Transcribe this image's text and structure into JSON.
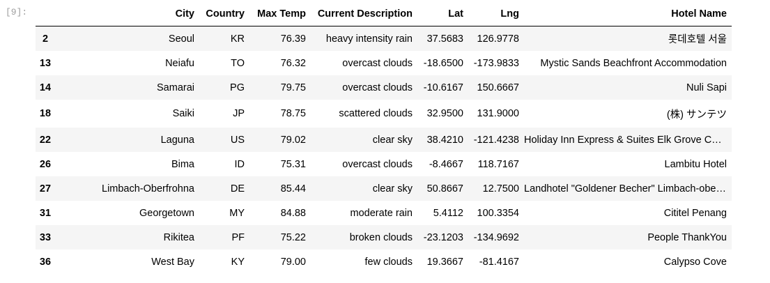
{
  "cell": {
    "prompt": "[9]:"
  },
  "table": {
    "columns": [
      "City",
      "Country",
      "Max Temp",
      "Current Description",
      "Lat",
      "Lng",
      "Hotel Name"
    ],
    "rows": [
      {
        "index": "2",
        "city": "Seoul",
        "country": "KR",
        "max_temp": "76.39",
        "description": "heavy intensity rain",
        "lat": "37.5683",
        "lng": "126.9778",
        "hotel": "롯데호텔 서울"
      },
      {
        "index": "13",
        "city": "Neiafu",
        "country": "TO",
        "max_temp": "76.32",
        "description": "overcast clouds",
        "lat": "-18.6500",
        "lng": "-173.9833",
        "hotel": "Mystic Sands Beachfront Accommodation"
      },
      {
        "index": "14",
        "city": "Samarai",
        "country": "PG",
        "max_temp": "79.75",
        "description": "overcast clouds",
        "lat": "-10.6167",
        "lng": "150.6667",
        "hotel": "Nuli Sapi"
      },
      {
        "index": "18",
        "city": "Saiki",
        "country": "JP",
        "max_temp": "78.75",
        "description": "scattered clouds",
        "lat": "32.9500",
        "lng": "131.9000",
        "hotel": "(株) サンテツ"
      },
      {
        "index": "22",
        "city": "Laguna",
        "country": "US",
        "max_temp": "79.02",
        "description": "clear sky",
        "lat": "38.4210",
        "lng": "-121.4238",
        "hotel": "Holiday Inn Express & Suites Elk Grove Central..."
      },
      {
        "index": "26",
        "city": "Bima",
        "country": "ID",
        "max_temp": "75.31",
        "description": "overcast clouds",
        "lat": "-8.4667",
        "lng": "118.7167",
        "hotel": "Lambitu Hotel"
      },
      {
        "index": "27",
        "city": "Limbach-Oberfrohna",
        "country": "DE",
        "max_temp": "85.44",
        "description": "clear sky",
        "lat": "50.8667",
        "lng": "12.7500",
        "hotel": "Landhotel \"Goldener Becher\" Limbach-oberfrohna"
      },
      {
        "index": "31",
        "city": "Georgetown",
        "country": "MY",
        "max_temp": "84.88",
        "description": "moderate rain",
        "lat": "5.4112",
        "lng": "100.3354",
        "hotel": "Cititel Penang"
      },
      {
        "index": "33",
        "city": "Rikitea",
        "country": "PF",
        "max_temp": "75.22",
        "description": "broken clouds",
        "lat": "-23.1203",
        "lng": "-134.9692",
        "hotel": "People ThankYou"
      },
      {
        "index": "36",
        "city": "West Bay",
        "country": "KY",
        "max_temp": "79.00",
        "description": "few clouds",
        "lat": "19.3667",
        "lng": "-81.4167",
        "hotel": "Calypso Cove"
      }
    ]
  }
}
